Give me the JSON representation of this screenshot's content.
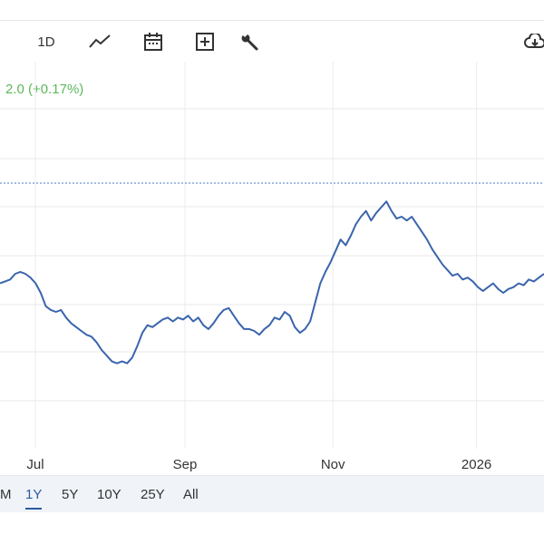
{
  "toolbar": {
    "period_label": "1D",
    "icons": [
      "line-chart-icon",
      "calendar-icon",
      "add-box-icon",
      "wrench-icon",
      "cloud-download-icon"
    ]
  },
  "header": {
    "change_text": "2.0 (+0.17%)",
    "change_color": "#5cb85c"
  },
  "ranges": {
    "items": [
      "M",
      "1Y",
      "5Y",
      "10Y",
      "25Y",
      "All"
    ],
    "active": "1Y"
  },
  "chart_data": {
    "type": "line",
    "line_color": "#3a64ad",
    "reference_line_color": "#4a79c9",
    "grid": true,
    "x_tick_labels": [
      "Jul",
      "Sep",
      "Nov",
      "2026"
    ],
    "x_tick_positions": [
      0.065,
      0.34,
      0.612,
      0.876
    ],
    "series": [
      {
        "values": [
          0.55,
          0.56,
          0.57,
          0.6,
          0.61,
          0.6,
          0.58,
          0.55,
          0.5,
          0.43,
          0.41,
          0.4,
          0.41,
          0.37,
          0.34,
          0.32,
          0.3,
          0.28,
          0.27,
          0.24,
          0.2,
          0.17,
          0.14,
          0.13,
          0.14,
          0.13,
          0.16,
          0.22,
          0.29,
          0.33,
          0.32,
          0.34,
          0.36,
          0.37,
          0.35,
          0.37,
          0.36,
          0.38,
          0.35,
          0.37,
          0.33,
          0.31,
          0.34,
          0.38,
          0.41,
          0.42,
          0.38,
          0.34,
          0.31,
          0.31,
          0.3,
          0.28,
          0.31,
          0.33,
          0.37,
          0.36,
          0.4,
          0.38,
          0.32,
          0.29,
          0.31,
          0.35,
          0.45,
          0.55,
          0.61,
          0.66,
          0.72,
          0.78,
          0.75,
          0.8,
          0.86,
          0.9,
          0.93,
          0.88,
          0.92,
          0.95,
          0.98,
          0.93,
          0.89,
          0.9,
          0.88,
          0.9,
          0.86,
          0.82,
          0.78,
          0.73,
          0.69,
          0.65,
          0.62,
          0.59,
          0.6,
          0.57,
          0.58,
          0.56,
          0.53,
          0.51,
          0.53,
          0.55,
          0.52,
          0.5,
          0.52,
          0.53,
          0.55,
          0.54,
          0.57,
          0.56,
          0.58,
          0.6
        ]
      }
    ]
  }
}
